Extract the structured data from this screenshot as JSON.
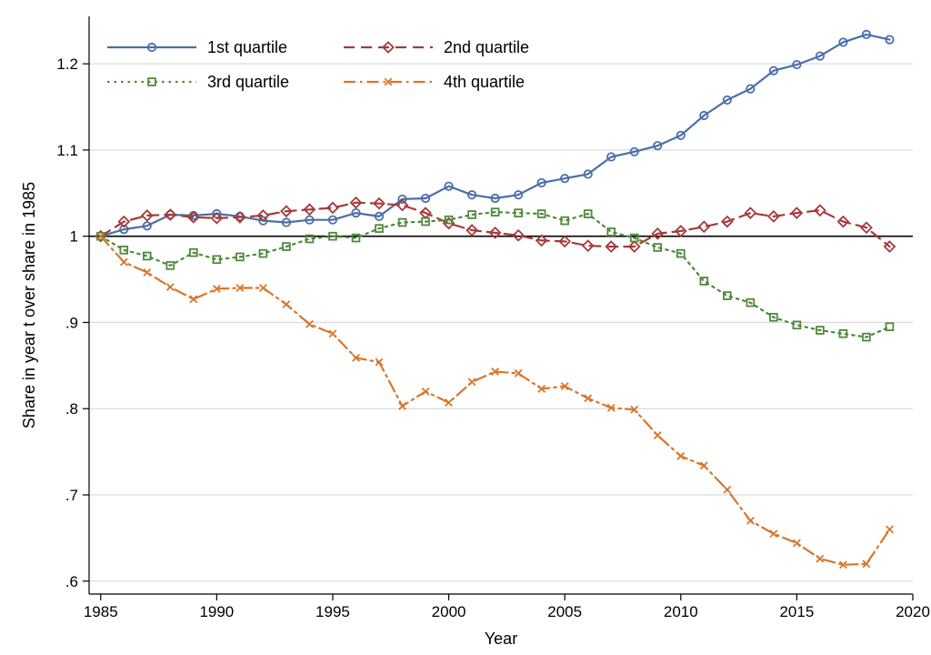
{
  "chart_data": {
    "type": "line",
    "xlabel": "Year",
    "ylabel": "Share in year t over share in 1985",
    "xlim": [
      1984.5,
      2020
    ],
    "ylim": [
      0.585,
      1.255
    ],
    "x_ticks": [
      1985,
      1990,
      1995,
      2000,
      2005,
      2010,
      2015,
      2020
    ],
    "x_tick_labels": [
      "1985",
      "1990",
      "1995",
      "2000",
      "2005",
      "2010",
      "2015",
      "2020"
    ],
    "y_ticks": [
      0.6,
      0.7,
      0.8,
      0.9,
      1.0,
      1.1,
      1.2
    ],
    "y_tick_labels": [
      ".6",
      ".7",
      ".8",
      ".9",
      "1",
      "1.1",
      "1.2"
    ],
    "grid": "horizontal",
    "reference_line": 1.0,
    "legend_position": "top-left",
    "x": [
      1985,
      1986,
      1987,
      1988,
      1989,
      1990,
      1991,
      1992,
      1993,
      1994,
      1995,
      1996,
      1997,
      1998,
      1999,
      2000,
      2001,
      2002,
      2003,
      2004,
      2005,
      2006,
      2007,
      2008,
      2009,
      2010,
      2011,
      2012,
      2013,
      2014,
      2015,
      2016,
      2017,
      2018,
      2019
    ],
    "series": [
      {
        "name": "1st quartile",
        "color": "#4a6fa8",
        "marker": "circle",
        "dash": "solid",
        "values": [
          1.0,
          1.008,
          1.012,
          1.025,
          1.024,
          1.026,
          1.023,
          1.018,
          1.016,
          1.019,
          1.019,
          1.027,
          1.023,
          1.043,
          1.044,
          1.058,
          1.048,
          1.044,
          1.048,
          1.062,
          1.067,
          1.072,
          1.092,
          1.098,
          1.105,
          1.117,
          1.14,
          1.158,
          1.171,
          1.192,
          1.199,
          1.209,
          1.225,
          1.234,
          1.228
        ]
      },
      {
        "name": "2nd quartile",
        "color": "#a63a3a",
        "marker": "diamond",
        "dash": "dash",
        "values": [
          1.0,
          1.017,
          1.024,
          1.025,
          1.022,
          1.021,
          1.022,
          1.024,
          1.029,
          1.031,
          1.033,
          1.039,
          1.038,
          1.036,
          1.027,
          1.015,
          1.007,
          1.004,
          1.001,
          0.995,
          0.994,
          0.989,
          0.988,
          0.988,
          1.003,
          1.006,
          1.011,
          1.017,
          1.027,
          1.023,
          1.027,
          1.03,
          1.017,
          1.01,
          0.988
        ]
      },
      {
        "name": "3rd quartile",
        "color": "#4e8a3a",
        "marker": "square",
        "dash": "dot",
        "values": [
          1.0,
          0.984,
          0.977,
          0.966,
          0.981,
          0.973,
          0.976,
          0.98,
          0.988,
          0.997,
          1.0,
          0.998,
          1.009,
          1.016,
          1.017,
          1.019,
          1.025,
          1.028,
          1.027,
          1.026,
          1.018,
          1.026,
          1.005,
          0.998,
          0.987,
          0.98,
          0.948,
          0.931,
          0.923,
          0.906,
          0.897,
          0.891,
          0.887,
          0.883,
          0.895
        ]
      },
      {
        "name": "4th quartile",
        "color": "#d9762b",
        "marker": "x",
        "dash": "dashdot",
        "values": [
          1.0,
          0.97,
          0.958,
          0.941,
          0.927,
          0.939,
          0.94,
          0.94,
          0.921,
          0.898,
          0.887,
          0.859,
          0.854,
          0.803,
          0.82,
          0.807,
          0.831,
          0.843,
          0.841,
          0.823,
          0.826,
          0.812,
          0.801,
          0.799,
          0.769,
          0.745,
          0.734,
          0.706,
          0.67,
          0.655,
          0.644,
          0.626,
          0.619,
          0.62,
          0.66
        ]
      }
    ]
  }
}
